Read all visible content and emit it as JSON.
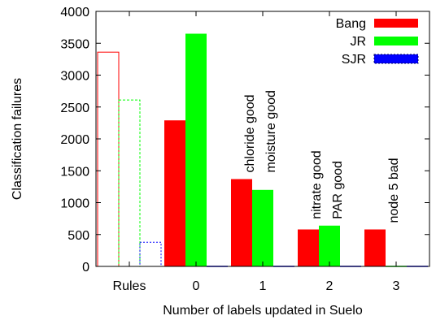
{
  "chart_data": {
    "type": "bar",
    "xlabel": "Number of labels updated in Suelo",
    "ylabel": "Classification failures",
    "ylim": [
      0,
      4000
    ],
    "yticks": [
      0,
      500,
      1000,
      1500,
      2000,
      2500,
      3000,
      3500,
      4000
    ],
    "categories": [
      "Rules",
      "0",
      "1",
      "2",
      "3"
    ],
    "series": [
      {
        "name": "Bang",
        "color": "#ff0000",
        "values": [
          3360,
          2290,
          1370,
          580,
          580
        ]
      },
      {
        "name": "JR",
        "color": "#00ff00",
        "values": [
          2610,
          3650,
          1200,
          640,
          0
        ]
      },
      {
        "name": "SJR",
        "color": "#0000ff",
        "values": [
          380,
          0,
          0,
          0,
          0
        ]
      }
    ],
    "outlined_categories": [
      "Rules"
    ],
    "legend": {
      "position": "top-right"
    },
    "grid": false,
    "annotations": [
      {
        "category": "1",
        "lines": [
          "chloride good",
          "moisture good"
        ]
      },
      {
        "category": "2",
        "lines": [
          "nitrate good",
          "PAR good"
        ]
      },
      {
        "category": "3",
        "lines": [
          "node 5 bad"
        ]
      }
    ]
  }
}
